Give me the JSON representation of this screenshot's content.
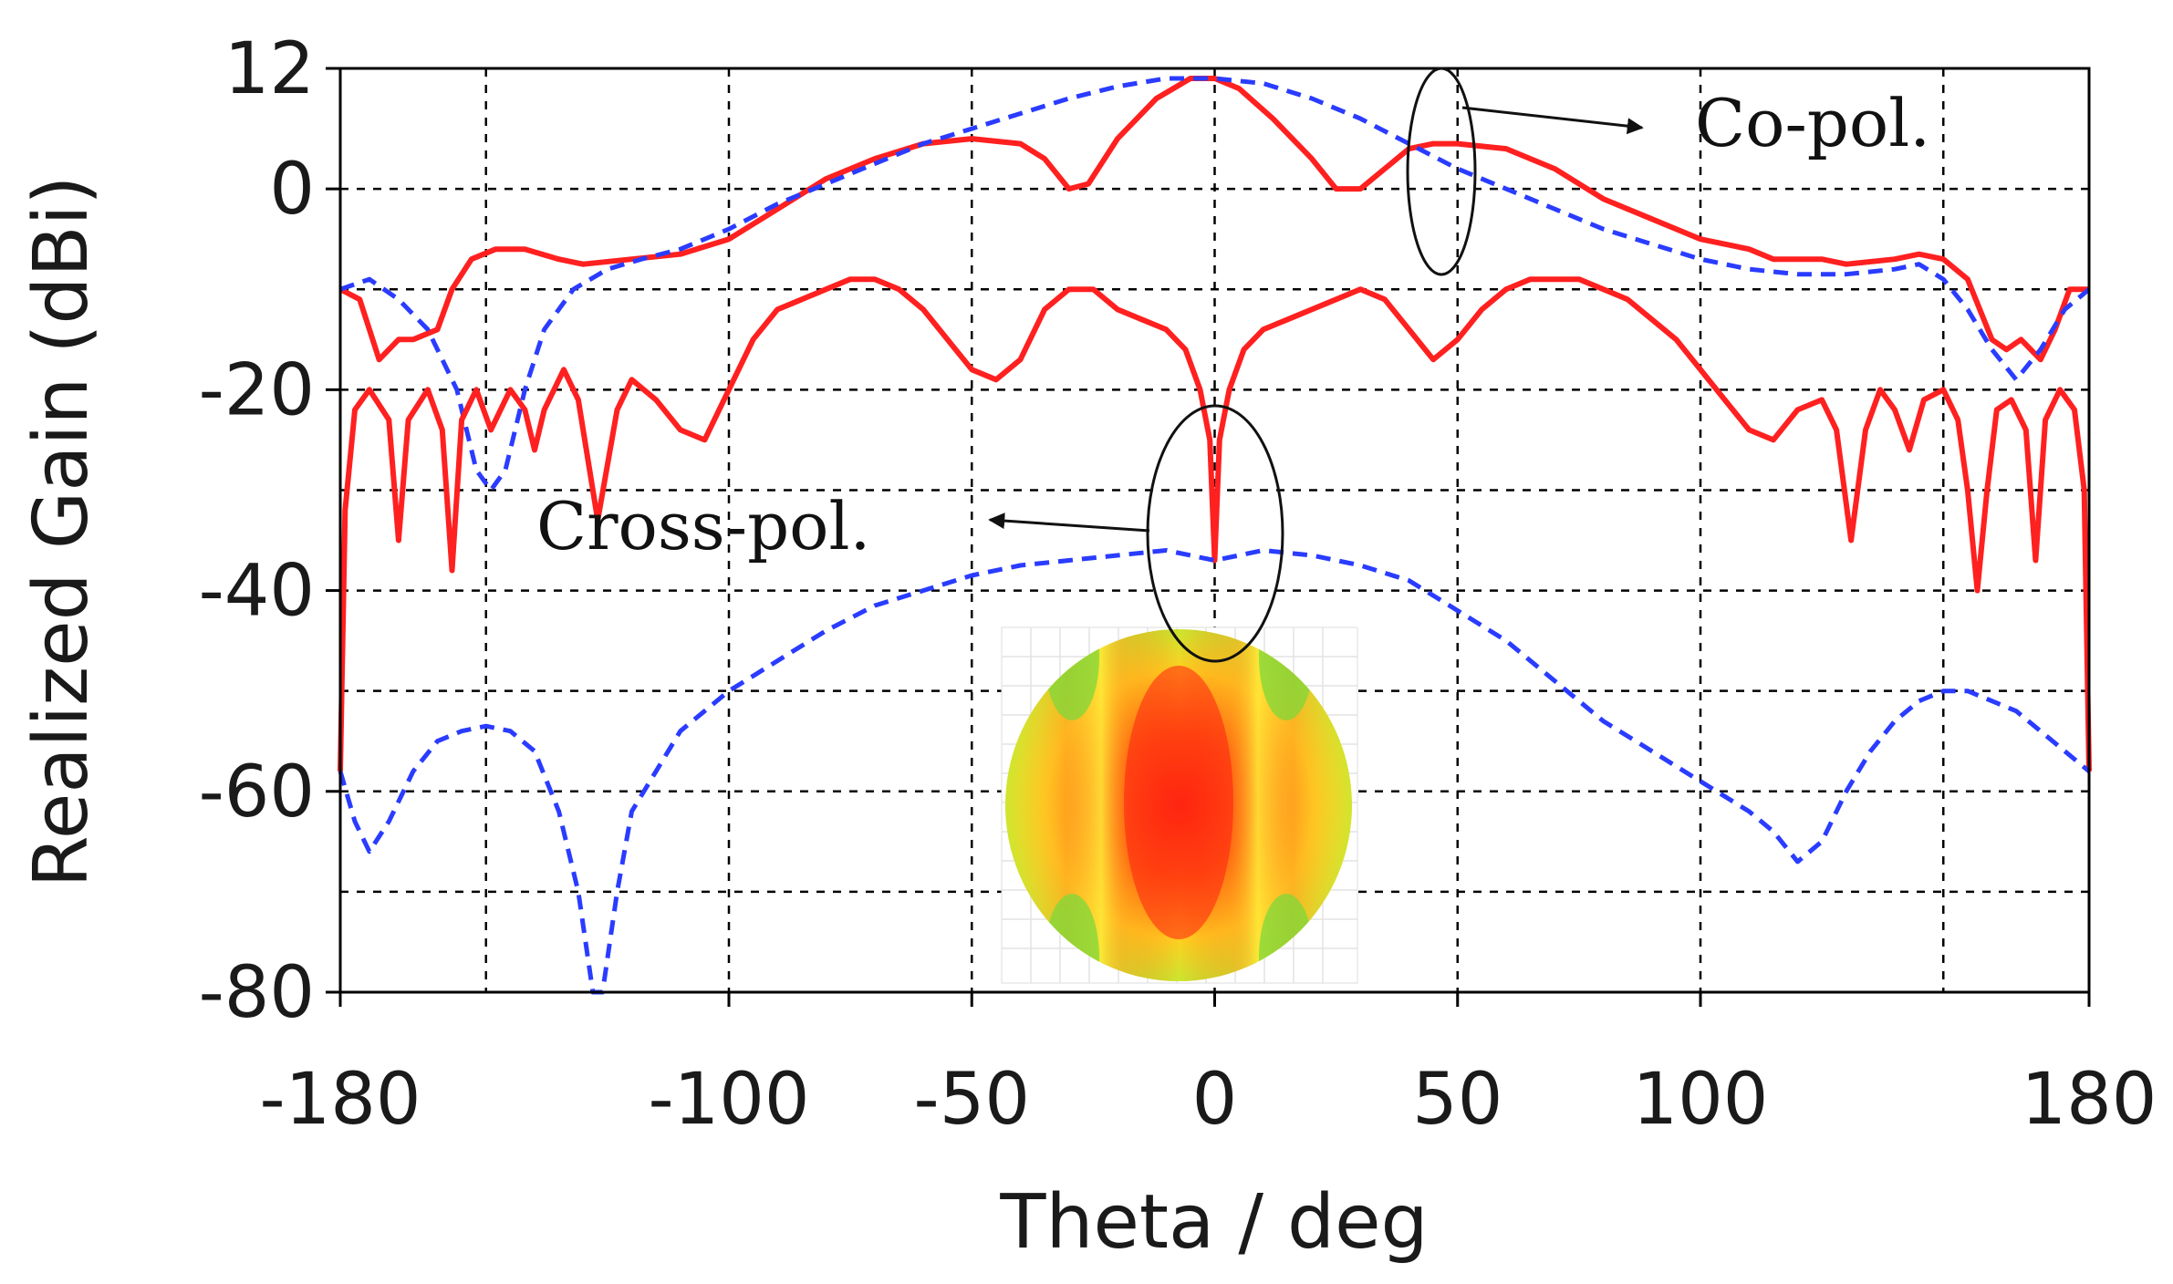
{
  "chart_data": {
    "type": "line",
    "title": "",
    "xlabel": "Theta / deg",
    "ylabel": "Realized Gain (dBi)",
    "xlim": [
      -180,
      180
    ],
    "ylim": [
      -80,
      12
    ],
    "x_ticks": [
      -180,
      -100,
      -50,
      0,
      50,
      100,
      180
    ],
    "x_tick_labels": [
      "-180",
      "-100",
      "-50",
      "0",
      "50",
      "100",
      "180"
    ],
    "x_grid": [
      -180,
      -150,
      -100,
      -50,
      0,
      50,
      100,
      150,
      180
    ],
    "y_ticks": [
      12,
      0,
      -20,
      -40,
      -60,
      -80
    ],
    "y_tick_labels": [
      "12",
      "0",
      "-20",
      "-40",
      "-60",
      "-80"
    ],
    "y_grid": [
      12,
      0,
      -10,
      -20,
      -30,
      -40,
      -50,
      -60,
      -70,
      -80
    ],
    "grid": true,
    "annotations": [
      {
        "text": "Co-pol.",
        "target": "co-pol curves near theta 45",
        "arrow": "right"
      },
      {
        "text": "Cross-pol.",
        "target": "cross-pol curves near theta 0",
        "arrow": "left"
      }
    ],
    "inset": "radiation pattern heat map (red center, yellow/green lobes)",
    "series": [
      {
        "name": "co-pol (red, solid)",
        "color": "#ff2020",
        "style": "solid",
        "points": [
          [
            -180,
            -10
          ],
          [
            -176,
            -11
          ],
          [
            -172,
            -17
          ],
          [
            -168,
            -15
          ],
          [
            -165,
            -15
          ],
          [
            -160,
            -14
          ],
          [
            -157,
            -10
          ],
          [
            -153,
            -7
          ],
          [
            -148,
            -6
          ],
          [
            -142,
            -6
          ],
          [
            -135,
            -7
          ],
          [
            -130,
            -7.5
          ],
          [
            -120,
            -7
          ],
          [
            -110,
            -6.5
          ],
          [
            -100,
            -5
          ],
          [
            -90,
            -2
          ],
          [
            -80,
            1
          ],
          [
            -70,
            3
          ],
          [
            -60,
            4.5
          ],
          [
            -50,
            5
          ],
          [
            -40,
            4.5
          ],
          [
            -35,
            3
          ],
          [
            -30,
            0
          ],
          [
            -26,
            0.5
          ],
          [
            -20,
            5
          ],
          [
            -12,
            9
          ],
          [
            -5,
            11
          ],
          [
            0,
            11
          ],
          [
            5,
            10
          ],
          [
            12,
            7
          ],
          [
            20,
            3
          ],
          [
            25,
            0
          ],
          [
            30,
            0
          ],
          [
            35,
            2
          ],
          [
            40,
            4
          ],
          [
            45,
            4.5
          ],
          [
            50,
            4.5
          ],
          [
            60,
            4
          ],
          [
            70,
            2
          ],
          [
            80,
            -1
          ],
          [
            90,
            -3
          ],
          [
            100,
            -5
          ],
          [
            110,
            -6
          ],
          [
            115,
            -7
          ],
          [
            120,
            -7
          ],
          [
            125,
            -7
          ],
          [
            130,
            -7.5
          ],
          [
            140,
            -7
          ],
          [
            145,
            -6.5
          ],
          [
            150,
            -7
          ],
          [
            155,
            -9
          ],
          [
            160,
            -15
          ],
          [
            163,
            -16
          ],
          [
            166,
            -15
          ],
          [
            170,
            -17
          ],
          [
            173,
            -14
          ],
          [
            176,
            -10
          ],
          [
            180,
            -10
          ]
        ]
      },
      {
        "name": "co-pol (blue, dashed)",
        "color": "#2a3cff",
        "style": "dashed",
        "points": [
          [
            -180,
            -10
          ],
          [
            -174,
            -9
          ],
          [
            -168,
            -11
          ],
          [
            -162,
            -14
          ],
          [
            -156,
            -20
          ],
          [
            -152,
            -28
          ],
          [
            -149,
            -30
          ],
          [
            -146,
            -28
          ],
          [
            -142,
            -20
          ],
          [
            -138,
            -14
          ],
          [
            -132,
            -10
          ],
          [
            -125,
            -8
          ],
          [
            -118,
            -7
          ],
          [
            -110,
            -6
          ],
          [
            -100,
            -4
          ],
          [
            -90,
            -1.5
          ],
          [
            -80,
            0.5
          ],
          [
            -70,
            2.5
          ],
          [
            -60,
            4.5
          ],
          [
            -50,
            6
          ],
          [
            -40,
            7.5
          ],
          [
            -30,
            9
          ],
          [
            -20,
            10.2
          ],
          [
            -10,
            11
          ],
          [
            0,
            11
          ],
          [
            10,
            10.5
          ],
          [
            20,
            9
          ],
          [
            30,
            7
          ],
          [
            40,
            4.5
          ],
          [
            50,
            2
          ],
          [
            60,
            0
          ],
          [
            70,
            -2
          ],
          [
            80,
            -4
          ],
          [
            90,
            -5.5
          ],
          [
            100,
            -7
          ],
          [
            110,
            -8
          ],
          [
            120,
            -8.5
          ],
          [
            130,
            -8.5
          ],
          [
            140,
            -8
          ],
          [
            145,
            -7.5
          ],
          [
            150,
            -9
          ],
          [
            155,
            -12
          ],
          [
            160,
            -16
          ],
          [
            165,
            -19
          ],
          [
            170,
            -16
          ],
          [
            175,
            -12
          ],
          [
            180,
            -10
          ]
        ]
      },
      {
        "name": "cross-pol (red, solid)",
        "color": "#ff2020",
        "style": "solid",
        "points": [
          [
            -180,
            -58
          ],
          [
            -179,
            -32
          ],
          [
            -177,
            -22
          ],
          [
            -174,
            -20
          ],
          [
            -170,
            -23
          ],
          [
            -168,
            -35
          ],
          [
            -166,
            -23
          ],
          [
            -162,
            -20
          ],
          [
            -159,
            -24
          ],
          [
            -157,
            -38
          ],
          [
            -155,
            -23
          ],
          [
            -152,
            -20
          ],
          [
            -149,
            -24
          ],
          [
            -145,
            -20
          ],
          [
            -142,
            -22
          ],
          [
            -140,
            -26
          ],
          [
            -138,
            -22
          ],
          [
            -134,
            -18
          ],
          [
            -131,
            -21
          ],
          [
            -127,
            -33
          ],
          [
            -123,
            -22
          ],
          [
            -120,
            -19
          ],
          [
            -115,
            -21
          ],
          [
            -110,
            -24
          ],
          [
            -105,
            -25
          ],
          [
            -100,
            -20
          ],
          [
            -95,
            -15
          ],
          [
            -90,
            -12
          ],
          [
            -85,
            -11
          ],
          [
            -80,
            -10
          ],
          [
            -75,
            -9
          ],
          [
            -70,
            -9
          ],
          [
            -65,
            -10
          ],
          [
            -60,
            -12
          ],
          [
            -55,
            -15
          ],
          [
            -50,
            -18
          ],
          [
            -45,
            -19
          ],
          [
            -40,
            -17
          ],
          [
            -35,
            -12
          ],
          [
            -30,
            -10
          ],
          [
            -25,
            -10
          ],
          [
            -20,
            -12
          ],
          [
            -15,
            -13
          ],
          [
            -10,
            -14
          ],
          [
            -6,
            -16
          ],
          [
            -3,
            -20
          ],
          [
            -1,
            -25
          ],
          [
            0,
            -37
          ],
          [
            1,
            -25
          ],
          [
            3,
            -20
          ],
          [
            6,
            -16
          ],
          [
            10,
            -14
          ],
          [
            15,
            -13
          ],
          [
            20,
            -12
          ],
          [
            25,
            -11
          ],
          [
            30,
            -10
          ],
          [
            35,
            -11
          ],
          [
            40,
            -14
          ],
          [
            45,
            -17
          ],
          [
            50,
            -15
          ],
          [
            55,
            -12
          ],
          [
            60,
            -10
          ],
          [
            65,
            -9
          ],
          [
            70,
            -9
          ],
          [
            75,
            -9
          ],
          [
            80,
            -10
          ],
          [
            85,
            -11
          ],
          [
            90,
            -13
          ],
          [
            95,
            -15
          ],
          [
            100,
            -18
          ],
          [
            105,
            -21
          ],
          [
            110,
            -24
          ],
          [
            115,
            -25
          ],
          [
            120,
            -22
          ],
          [
            125,
            -21
          ],
          [
            128,
            -24
          ],
          [
            131,
            -35
          ],
          [
            134,
            -24
          ],
          [
            137,
            -20
          ],
          [
            140,
            -22
          ],
          [
            143,
            -26
          ],
          [
            146,
            -21
          ],
          [
            150,
            -20
          ],
          [
            153,
            -23
          ],
          [
            155,
            -30
          ],
          [
            157,
            -40
          ],
          [
            159,
            -30
          ],
          [
            161,
            -22
          ],
          [
            164,
            -21
          ],
          [
            167,
            -24
          ],
          [
            169,
            -37
          ],
          [
            171,
            -23
          ],
          [
            174,
            -20
          ],
          [
            177,
            -22
          ],
          [
            179,
            -30
          ],
          [
            180,
            -58
          ]
        ]
      },
      {
        "name": "cross-pol (blue, dashed)",
        "color": "#2a3cff",
        "style": "dashed",
        "points": [
          [
            -180,
            -58
          ],
          [
            -177,
            -63
          ],
          [
            -174,
            -66
          ],
          [
            -170,
            -63
          ],
          [
            -165,
            -58
          ],
          [
            -160,
            -55
          ],
          [
            -155,
            -54
          ],
          [
            -150,
            -53.5
          ],
          [
            -145,
            -54
          ],
          [
            -140,
            -56
          ],
          [
            -135,
            -62
          ],
          [
            -131,
            -70
          ],
          [
            -128,
            -80
          ],
          [
            -126,
            -80
          ],
          [
            -123,
            -70
          ],
          [
            -120,
            -62
          ],
          [
            -115,
            -58
          ],
          [
            -110,
            -54
          ],
          [
            -100,
            -50
          ],
          [
            -90,
            -47
          ],
          [
            -80,
            -44
          ],
          [
            -70,
            -41.5
          ],
          [
            -60,
            -40
          ],
          [
            -50,
            -38.5
          ],
          [
            -40,
            -37.5
          ],
          [
            -30,
            -37
          ],
          [
            -20,
            -36.5
          ],
          [
            -10,
            -36
          ],
          [
            0,
            -37
          ],
          [
            10,
            -36
          ],
          [
            20,
            -36.5
          ],
          [
            30,
            -37.5
          ],
          [
            40,
            -39
          ],
          [
            50,
            -42
          ],
          [
            60,
            -45
          ],
          [
            70,
            -49
          ],
          [
            80,
            -53
          ],
          [
            90,
            -56
          ],
          [
            100,
            -59
          ],
          [
            110,
            -62
          ],
          [
            115,
            -64
          ],
          [
            120,
            -67
          ],
          [
            125,
            -65
          ],
          [
            130,
            -60
          ],
          [
            135,
            -56
          ],
          [
            140,
            -53
          ],
          [
            145,
            -51
          ],
          [
            150,
            -50
          ],
          [
            155,
            -50
          ],
          [
            160,
            -51
          ],
          [
            165,
            -52
          ],
          [
            170,
            -54
          ],
          [
            175,
            -56
          ],
          [
            180,
            -58
          ]
        ]
      }
    ]
  }
}
